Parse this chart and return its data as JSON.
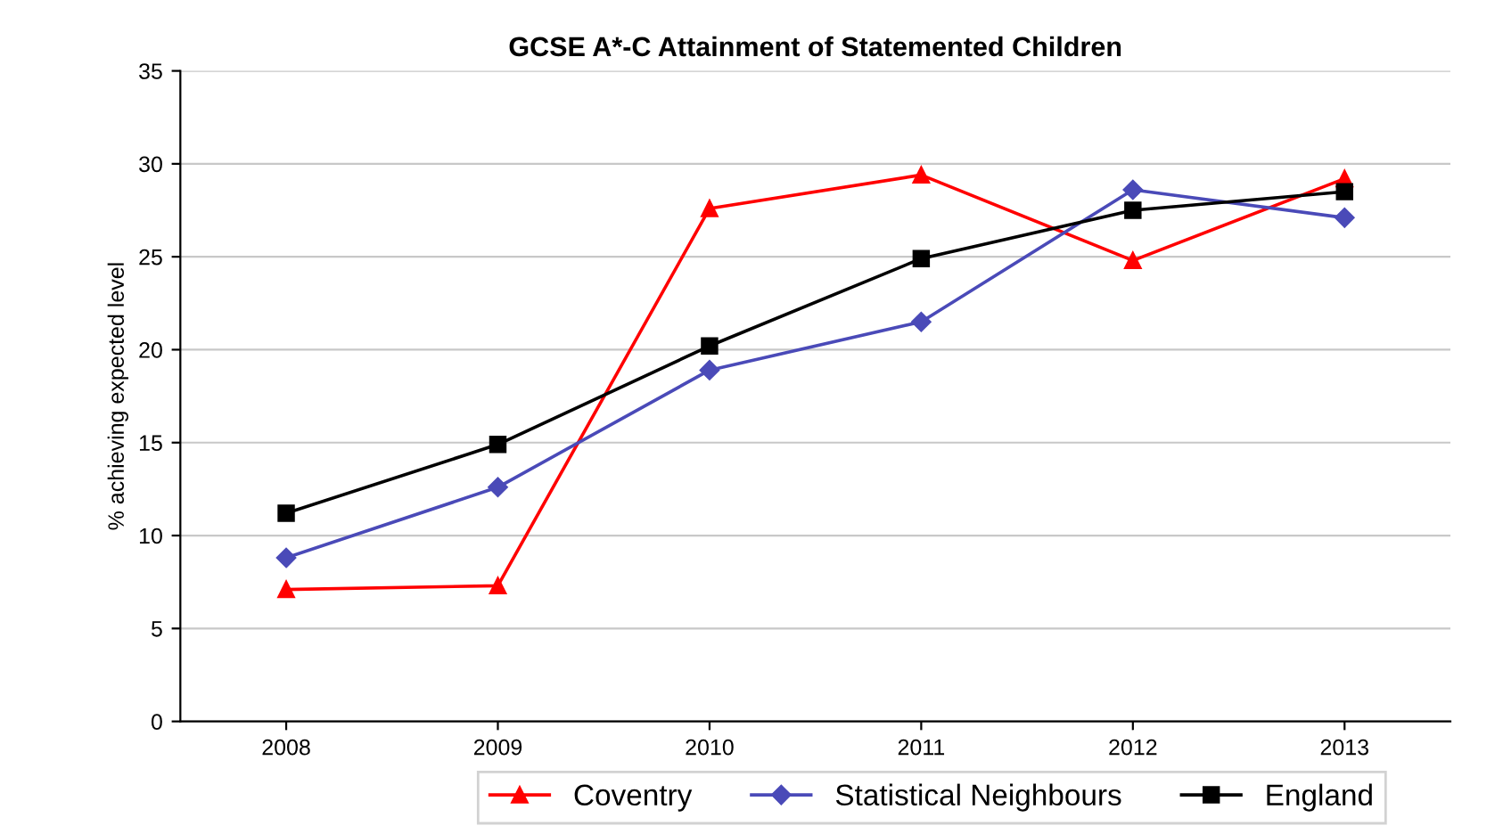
{
  "chart_data": {
    "type": "line",
    "title": "GCSE A*-C Attainment of Statemented Children",
    "ylabel": "% achieving expected level",
    "categories": [
      "2008",
      "2009",
      "2010",
      "2011",
      "2012",
      "2013"
    ],
    "series": [
      {
        "name": "Coventry",
        "color": "#ff0000",
        "marker": "triangle",
        "values": [
          7.1,
          7.3,
          27.6,
          29.4,
          24.8,
          29.2
        ]
      },
      {
        "name": "Statistical Neighbours",
        "color": "#4a4ab8",
        "marker": "diamond",
        "values": [
          8.8,
          12.6,
          18.9,
          21.5,
          28.6,
          27.1
        ]
      },
      {
        "name": "England",
        "color": "#000000",
        "marker": "square",
        "values": [
          11.2,
          14.9,
          20.2,
          24.9,
          27.5,
          28.5
        ]
      }
    ],
    "ylim": [
      0,
      35
    ],
    "yticks": [
      0,
      5,
      10,
      15,
      20,
      25,
      30,
      35
    ],
    "grid": "y",
    "legend": "bottom",
    "line_style": "solid"
  }
}
